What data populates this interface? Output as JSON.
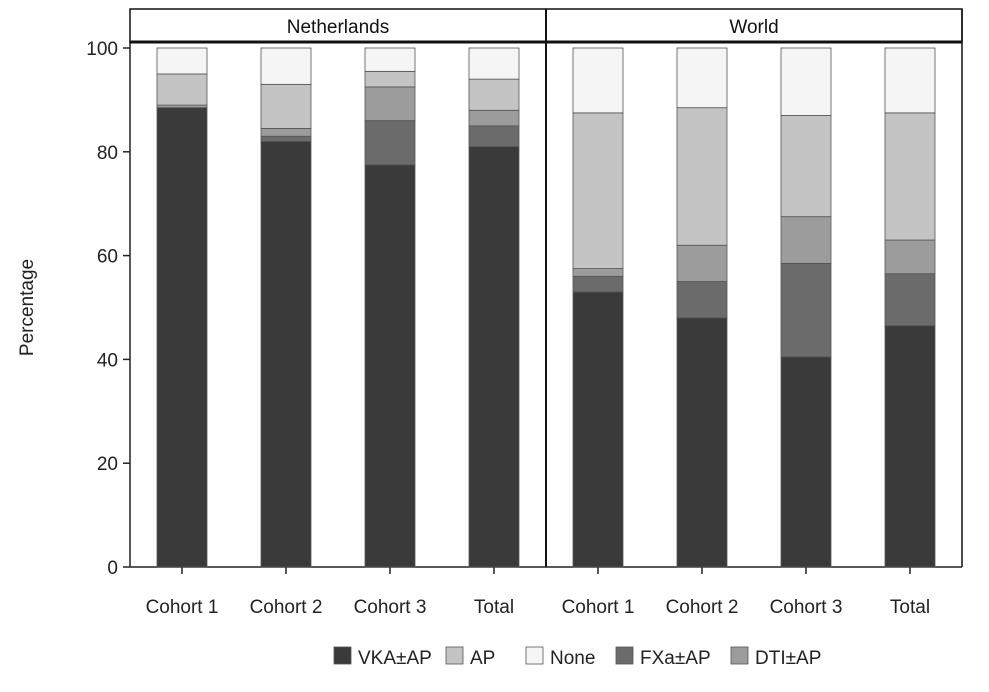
{
  "chart_data": {
    "type": "bar",
    "stacked": true,
    "ylabel": "Percentage",
    "ylim": [
      0,
      100
    ],
    "yticks": [
      0,
      20,
      40,
      60,
      80,
      100
    ],
    "grid": false,
    "legend_position": "bottom",
    "stack_order": [
      "VKA±AP",
      "FXa±AP",
      "DTI±AP",
      "AP",
      "None"
    ],
    "legend_order": [
      "VKA±AP",
      "AP",
      "None",
      "FXa±AP",
      "DTI±AP"
    ],
    "colors": {
      "VKA±AP": "#3a3a3a",
      "FXa±AP": "#6b6b6b",
      "DTI±AP": "#9c9c9c",
      "AP": "#c4c4c4",
      "None": "#f5f5f5"
    },
    "panels": [
      {
        "title": "Netherlands",
        "categories": [
          "Cohort 1",
          "Cohort 2",
          "Cohort 3",
          "Total"
        ],
        "series": [
          {
            "name": "VKA±AP",
            "values": [
              88.5,
              82.0,
              77.5,
              81.0
            ]
          },
          {
            "name": "FXa±AP",
            "values": [
              0.0,
              1.0,
              8.5,
              4.0
            ]
          },
          {
            "name": "DTI±AP",
            "values": [
              0.5,
              1.5,
              6.5,
              3.0
            ]
          },
          {
            "name": "AP",
            "values": [
              6.0,
              8.5,
              3.0,
              6.0
            ]
          },
          {
            "name": "None",
            "values": [
              5.0,
              7.0,
              4.5,
              6.0
            ]
          }
        ]
      },
      {
        "title": "World",
        "categories": [
          "Cohort 1",
          "Cohort 2",
          "Cohort 3",
          "Total"
        ],
        "series": [
          {
            "name": "VKA±AP",
            "values": [
              53.0,
              48.0,
              40.5,
              46.5
            ]
          },
          {
            "name": "FXa±AP",
            "values": [
              3.0,
              7.0,
              18.0,
              10.0
            ]
          },
          {
            "name": "DTI±AP",
            "values": [
              1.5,
              7.0,
              9.0,
              6.5
            ]
          },
          {
            "name": "AP",
            "values": [
              30.0,
              26.5,
              19.5,
              24.5
            ]
          },
          {
            "name": "None",
            "values": [
              12.5,
              11.5,
              13.0,
              12.5
            ]
          }
        ]
      }
    ]
  }
}
